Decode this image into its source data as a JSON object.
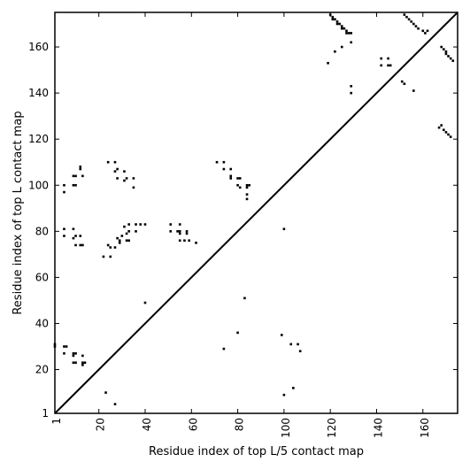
{
  "chart_data": {
    "type": "scatter",
    "title": "",
    "xlabel": "Residue index of top L/5 contact map",
    "ylabel": "Residue index of top L contact map",
    "xlim": [
      1,
      175
    ],
    "ylim": [
      1,
      175
    ],
    "xticks": [
      1,
      20,
      40,
      60,
      80,
      100,
      120,
      140,
      160
    ],
    "yticks": [
      1,
      20,
      40,
      60,
      80,
      100,
      120,
      140,
      160
    ],
    "xtick_labels": [
      "1",
      "20",
      "40",
      "60",
      "80",
      "100",
      "120",
      "140",
      "160"
    ],
    "ytick_labels": [
      "1",
      "20",
      "40",
      "60",
      "80",
      "100",
      "120",
      "140",
      "160"
    ],
    "diagonal": true,
    "grid": false,
    "marker_color": "#000000",
    "series": [
      {
        "values_note": "",
        "points": [
          [
            120,
            174
          ],
          [
            121,
            173
          ],
          [
            122,
            172
          ],
          [
            123,
            171
          ],
          [
            124,
            170
          ],
          [
            125,
            169
          ],
          [
            126,
            168
          ],
          [
            127,
            167
          ],
          [
            128,
            166
          ],
          [
            129,
            166
          ],
          [
            121,
            172
          ],
          [
            123,
            170
          ],
          [
            125,
            168
          ],
          [
            127,
            166
          ],
          [
            122,
            158
          ],
          [
            125,
            160
          ],
          [
            129,
            162
          ],
          [
            119,
            153
          ],
          [
            129,
            143
          ],
          [
            129,
            140
          ],
          [
            142,
            155
          ],
          [
            142,
            152
          ],
          [
            145,
            155
          ],
          [
            145,
            152
          ],
          [
            146,
            152
          ],
          [
            152,
            174
          ],
          [
            153,
            173
          ],
          [
            154,
            172
          ],
          [
            155,
            171
          ],
          [
            156,
            170
          ],
          [
            157,
            169
          ],
          [
            158,
            168
          ],
          [
            160,
            167
          ],
          [
            161,
            166
          ],
          [
            162,
            167
          ],
          [
            151,
            145
          ],
          [
            152,
            144
          ],
          [
            156,
            141
          ],
          [
            168,
            160
          ],
          [
            169,
            159
          ],
          [
            170,
            158
          ],
          [
            170,
            157
          ],
          [
            171,
            156
          ],
          [
            172,
            155
          ],
          [
            173,
            154
          ],
          [
            167,
            125
          ],
          [
            168,
            126
          ],
          [
            169,
            124
          ],
          [
            170,
            123
          ],
          [
            171,
            122
          ],
          [
            172,
            121
          ],
          [
            5,
            100
          ],
          [
            5,
            97
          ],
          [
            9,
            104
          ],
          [
            10,
            104
          ],
          [
            9,
            100
          ],
          [
            10,
            100
          ],
          [
            12,
            108
          ],
          [
            12,
            107
          ],
          [
            13,
            104
          ],
          [
            24,
            110
          ],
          [
            27,
            110
          ],
          [
            28,
            107
          ],
          [
            27,
            106
          ],
          [
            28,
            103
          ],
          [
            31,
            106
          ],
          [
            32,
            103
          ],
          [
            31,
            102
          ],
          [
            35,
            103
          ],
          [
            35,
            99
          ],
          [
            5,
            81
          ],
          [
            5,
            78
          ],
          [
            9,
            81
          ],
          [
            10,
            78
          ],
          [
            9,
            77
          ],
          [
            12,
            78
          ],
          [
            10,
            74
          ],
          [
            12,
            74
          ],
          [
            13,
            74
          ],
          [
            24,
            74
          ],
          [
            25,
            73
          ],
          [
            28,
            77
          ],
          [
            29,
            76
          ],
          [
            29,
            75
          ],
          [
            27,
            73
          ],
          [
            31,
            82
          ],
          [
            30,
            78
          ],
          [
            33,
            83
          ],
          [
            33,
            80
          ],
          [
            32,
            79
          ],
          [
            33,
            76
          ],
          [
            32,
            76
          ],
          [
            36,
            83
          ],
          [
            38,
            83
          ],
          [
            36,
            80
          ],
          [
            40,
            83
          ],
          [
            22,
            69
          ],
          [
            25,
            69
          ],
          [
            51,
            83
          ],
          [
            51,
            80
          ],
          [
            54,
            80
          ],
          [
            55,
            83
          ],
          [
            55,
            80
          ],
          [
            55,
            79
          ],
          [
            55,
            76
          ],
          [
            58,
            80
          ],
          [
            58,
            79
          ],
          [
            57,
            76
          ],
          [
            59,
            76
          ],
          [
            62,
            75
          ],
          [
            71,
            110
          ],
          [
            74,
            110
          ],
          [
            74,
            107
          ],
          [
            77,
            107
          ],
          [
            77,
            104
          ],
          [
            77,
            103
          ],
          [
            80,
            103
          ],
          [
            81,
            103
          ],
          [
            80,
            100
          ],
          [
            81,
            99
          ],
          [
            84,
            100
          ],
          [
            84,
            99
          ],
          [
            85,
            100
          ],
          [
            84,
            96
          ],
          [
            84,
            94
          ],
          [
            40,
            49
          ],
          [
            83,
            51
          ],
          [
            1,
            31
          ],
          [
            1,
            30
          ],
          [
            5,
            30
          ],
          [
            6,
            30
          ],
          [
            5,
            27
          ],
          [
            9,
            27
          ],
          [
            10,
            27
          ],
          [
            9,
            26
          ],
          [
            13,
            26
          ],
          [
            9,
            23
          ],
          [
            10,
            23
          ],
          [
            13,
            23
          ],
          [
            14,
            23
          ],
          [
            13,
            22
          ],
          [
            80,
            36
          ],
          [
            74,
            29
          ],
          [
            99,
            35
          ],
          [
            103,
            31
          ],
          [
            106,
            31
          ],
          [
            107,
            28
          ],
          [
            23,
            10
          ],
          [
            27,
            5
          ],
          [
            100,
            81
          ],
          [
            100,
            9
          ],
          [
            104,
            12
          ]
        ]
      }
    ]
  }
}
